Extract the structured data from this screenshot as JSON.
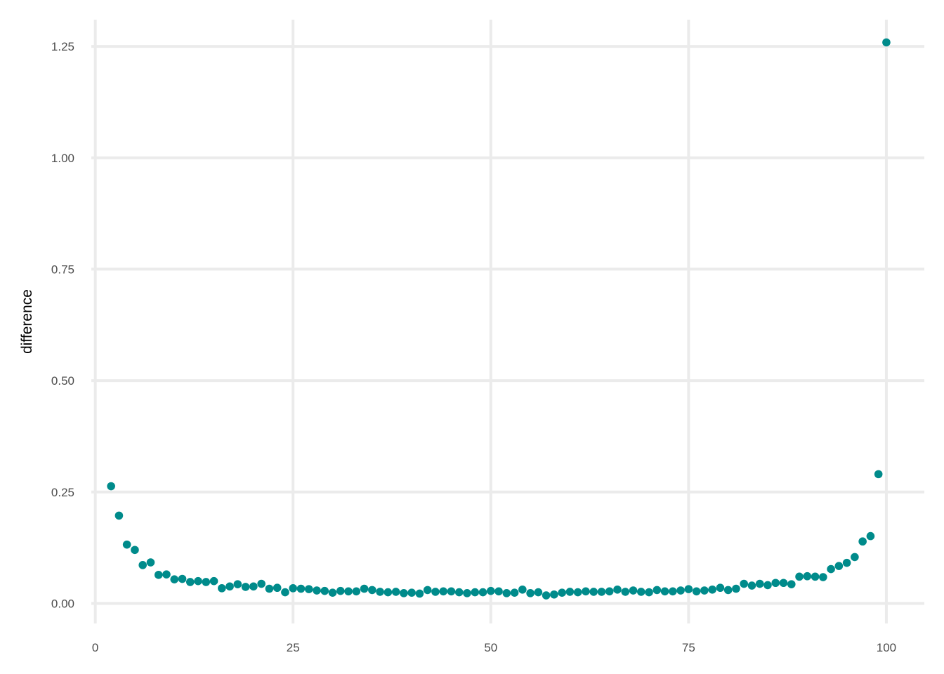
{
  "chart_data": {
    "type": "scatter",
    "title": "",
    "xlabel": "",
    "ylabel": "difference",
    "xlim": [
      -0.5,
      104.8
    ],
    "ylim": [
      -0.045,
      1.31
    ],
    "x_ticks": [
      0,
      25,
      50,
      75,
      100
    ],
    "x_tick_labels": [
      "0",
      "25",
      "50",
      "75",
      "100"
    ],
    "y_ticks": [
      0.0,
      0.25,
      0.5,
      0.75,
      1.0,
      1.25
    ],
    "y_tick_labels": [
      "0.00",
      "0.25",
      "0.50",
      "0.75",
      "1.00",
      "1.25"
    ],
    "grid": true,
    "point_color": "#008B8B",
    "grid_color": "#EBEBEB",
    "series": [
      {
        "x": [
          2,
          3,
          4,
          5,
          6,
          7,
          8,
          9,
          10,
          11,
          12,
          13,
          14,
          15,
          16,
          17,
          18,
          19,
          20,
          21,
          22,
          23,
          24,
          25,
          26,
          27,
          28,
          29,
          30,
          31,
          32,
          33,
          34,
          35,
          36,
          37,
          38,
          39,
          40,
          41,
          42,
          43,
          44,
          45,
          46,
          47,
          48,
          49,
          50,
          51,
          52,
          53,
          54,
          55,
          56,
          57,
          58,
          59,
          60,
          61,
          62,
          63,
          64,
          65,
          66,
          67,
          68,
          69,
          70,
          71,
          72,
          73,
          74,
          75,
          76,
          77,
          78,
          79,
          80,
          81,
          82,
          83,
          84,
          85,
          86,
          87,
          88,
          89,
          90,
          91,
          92,
          93,
          94,
          95,
          96,
          97,
          98,
          99,
          100
        ],
        "y": [
          0.263,
          0.197,
          0.132,
          0.12,
          0.086,
          0.092,
          0.064,
          0.065,
          0.054,
          0.055,
          0.048,
          0.05,
          0.048,
          0.05,
          0.034,
          0.038,
          0.043,
          0.037,
          0.038,
          0.044,
          0.033,
          0.035,
          0.025,
          0.034,
          0.033,
          0.032,
          0.029,
          0.028,
          0.024,
          0.028,
          0.027,
          0.027,
          0.033,
          0.03,
          0.026,
          0.025,
          0.026,
          0.023,
          0.024,
          0.022,
          0.03,
          0.026,
          0.027,
          0.027,
          0.025,
          0.023,
          0.025,
          0.025,
          0.028,
          0.027,
          0.023,
          0.024,
          0.031,
          0.023,
          0.025,
          0.018,
          0.02,
          0.024,
          0.026,
          0.025,
          0.027,
          0.026,
          0.026,
          0.027,
          0.031,
          0.026,
          0.029,
          0.026,
          0.025,
          0.03,
          0.027,
          0.027,
          0.029,
          0.032,
          0.027,
          0.029,
          0.031,
          0.035,
          0.03,
          0.033,
          0.044,
          0.04,
          0.044,
          0.041,
          0.046,
          0.046,
          0.043,
          0.06,
          0.061,
          0.06,
          0.059,
          0.077,
          0.084,
          0.091,
          0.104,
          0.139,
          0.151,
          0.29,
          1.259
        ]
      }
    ]
  }
}
